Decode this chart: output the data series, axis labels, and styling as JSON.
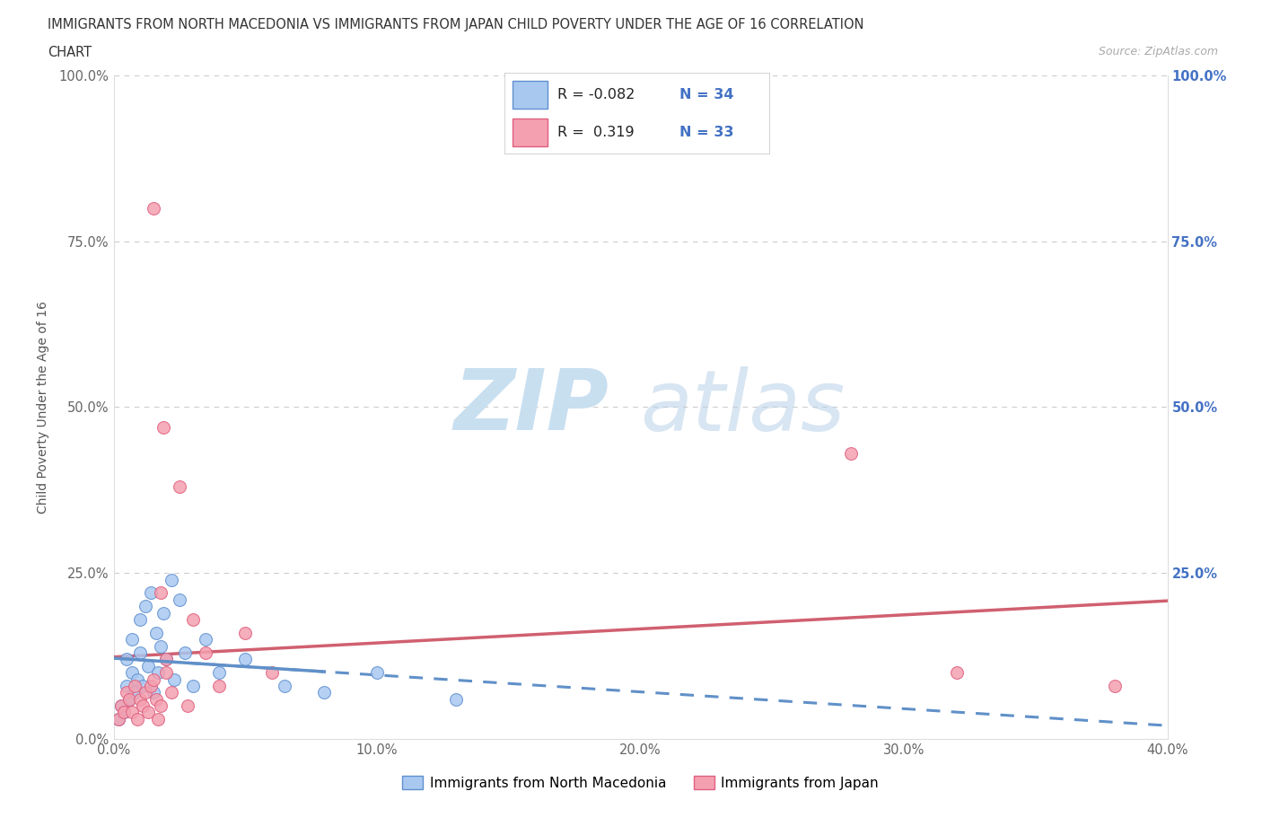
{
  "title_line1": "IMMIGRANTS FROM NORTH MACEDONIA VS IMMIGRANTS FROM JAPAN CHILD POVERTY UNDER THE AGE OF 16 CORRELATION",
  "title_line2": "CHART",
  "source": "Source: ZipAtlas.com",
  "ylabel": "Child Poverty Under the Age of 16",
  "legend_label1": "Immigrants from North Macedonia",
  "legend_label2": "Immigrants from Japan",
  "R1": -0.082,
  "N1": 34,
  "R2": 0.319,
  "N2": 33,
  "color1": "#a8c8f0",
  "color2": "#f4a0b0",
  "edge_color1": "#6090d0",
  "edge_color2": "#e06080",
  "trend_color1": "#6090c8",
  "trend_color2": "#d06070",
  "xlim": [
    0.0,
    0.4
  ],
  "ylim": [
    0.0,
    1.0
  ],
  "xticks": [
    0.0,
    0.1,
    0.2,
    0.3,
    0.4
  ],
  "yticks": [
    0.0,
    0.25,
    0.5,
    0.75,
    1.0
  ],
  "blue_x": [
    0.002,
    0.003,
    0.004,
    0.005,
    0.005,
    0.006,
    0.007,
    0.007,
    0.008,
    0.009,
    0.01,
    0.01,
    0.011,
    0.012,
    0.013,
    0.014,
    0.015,
    0.016,
    0.017,
    0.018,
    0.019,
    0.02,
    0.022,
    0.023,
    0.025,
    0.027,
    0.03,
    0.035,
    0.04,
    0.05,
    0.065,
    0.08,
    0.1,
    0.13
  ],
  "blue_y": [
    0.03,
    0.05,
    0.04,
    0.08,
    0.12,
    0.06,
    0.1,
    0.15,
    0.07,
    0.09,
    0.13,
    0.18,
    0.08,
    0.2,
    0.11,
    0.22,
    0.07,
    0.16,
    0.1,
    0.14,
    0.19,
    0.12,
    0.24,
    0.09,
    0.21,
    0.13,
    0.08,
    0.15,
    0.1,
    0.12,
    0.08,
    0.07,
    0.1,
    0.06
  ],
  "pink_x": [
    0.002,
    0.003,
    0.004,
    0.005,
    0.006,
    0.007,
    0.008,
    0.009,
    0.01,
    0.011,
    0.012,
    0.013,
    0.014,
    0.015,
    0.016,
    0.017,
    0.018,
    0.019,
    0.02,
    0.022,
    0.025,
    0.028,
    0.03,
    0.035,
    0.04,
    0.05,
    0.06,
    0.02,
    0.015,
    0.28,
    0.32,
    0.38,
    0.018
  ],
  "pink_y": [
    0.03,
    0.05,
    0.04,
    0.07,
    0.06,
    0.04,
    0.08,
    0.03,
    0.06,
    0.05,
    0.07,
    0.04,
    0.08,
    0.8,
    0.06,
    0.03,
    0.05,
    0.47,
    0.1,
    0.07,
    0.38,
    0.05,
    0.18,
    0.13,
    0.08,
    0.16,
    0.1,
    0.12,
    0.09,
    0.43,
    0.1,
    0.08,
    0.22
  ]
}
